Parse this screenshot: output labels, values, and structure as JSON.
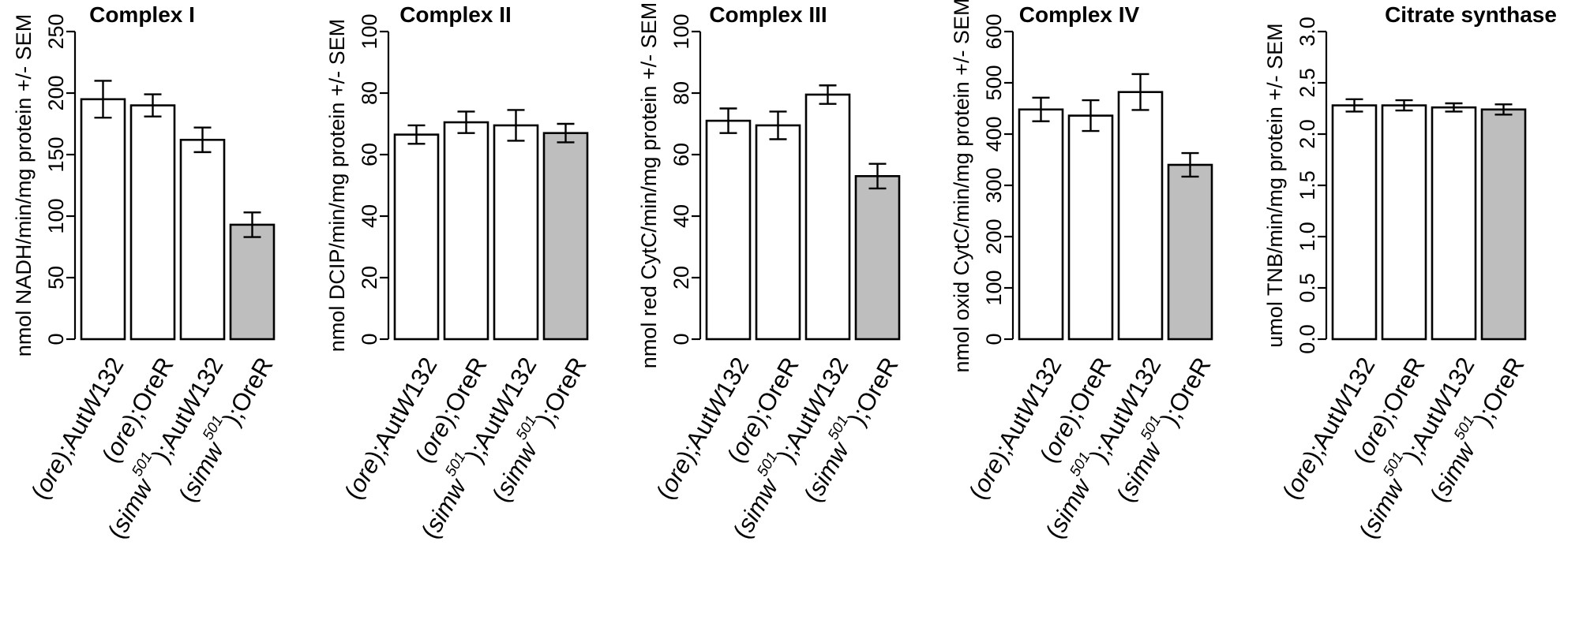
{
  "colors": {
    "control_fill": "#ffffff",
    "mutant_fill": "#bebebe",
    "stroke": "#000000"
  },
  "chart_data": [
    {
      "type": "bar",
      "title": "Complex I",
      "ylabel": "nmol NADH/min/mg protein +/- SEM",
      "ylim": [
        0,
        250
      ],
      "yticks": [
        0,
        50,
        100,
        150,
        200,
        250
      ],
      "categories": [
        "(ore);AutW132",
        "(ore);OreR",
        "(simw501);AutW132",
        "(simw501);OreR"
      ],
      "values": [
        195,
        190,
        162,
        93
      ],
      "errors": [
        15,
        9,
        10,
        10
      ]
    },
    {
      "type": "bar",
      "title": "Complex II",
      "ylabel": "nmol DCIP/min/mg protein +/- SEM",
      "ylim": [
        0,
        100
      ],
      "yticks": [
        0,
        20,
        40,
        60,
        80,
        100
      ],
      "categories": [
        "(ore);AutW132",
        "(ore);OreR",
        "(simw501);AutW132",
        "(simw501);OreR"
      ],
      "values": [
        66.5,
        70.5,
        69.5,
        67
      ],
      "errors": [
        3,
        3.5,
        5,
        3
      ]
    },
    {
      "type": "bar",
      "title": "Complex III",
      "ylabel": "nmol red CytC/min/mg protein +/- SEM",
      "ylim": [
        0,
        100
      ],
      "yticks": [
        0,
        20,
        40,
        60,
        80,
        100
      ],
      "categories": [
        "(ore);AutW132",
        "(ore);OreR",
        "(simw501);AutW132",
        "(simw501);OreR"
      ],
      "values": [
        71,
        69.5,
        79.5,
        53
      ],
      "errors": [
        4,
        4.5,
        3,
        4
      ]
    },
    {
      "type": "bar",
      "title": "Complex IV",
      "ylabel": "nmol oxid CytC/min/mg protein +/- SEM",
      "ylim": [
        0,
        600
      ],
      "yticks": [
        0,
        100,
        200,
        300,
        400,
        500,
        600
      ],
      "categories": [
        "(ore);AutW132",
        "(ore);OreR",
        "(simw501);AutW132",
        "(simw501);OreR"
      ],
      "values": [
        448,
        436,
        482,
        340
      ],
      "errors": [
        23,
        30,
        35,
        23
      ]
    },
    {
      "type": "bar",
      "title": "Citrate synthase",
      "ylabel": "umol TNB/min/mg protein +/- SEM",
      "ylim": [
        0,
        3
      ],
      "yticks": [
        "0.0",
        "0.5",
        "1.0",
        "1.5",
        "2.0",
        "2.5",
        "3.0"
      ],
      "categories": [
        "(ore);AutW132",
        "(ore);OreR",
        "(simw501);AutW132",
        "(simw501);OreR"
      ],
      "values": [
        2.28,
        2.28,
        2.26,
        2.24
      ],
      "errors": [
        0.06,
        0.05,
        0.04,
        0.05
      ]
    }
  ]
}
